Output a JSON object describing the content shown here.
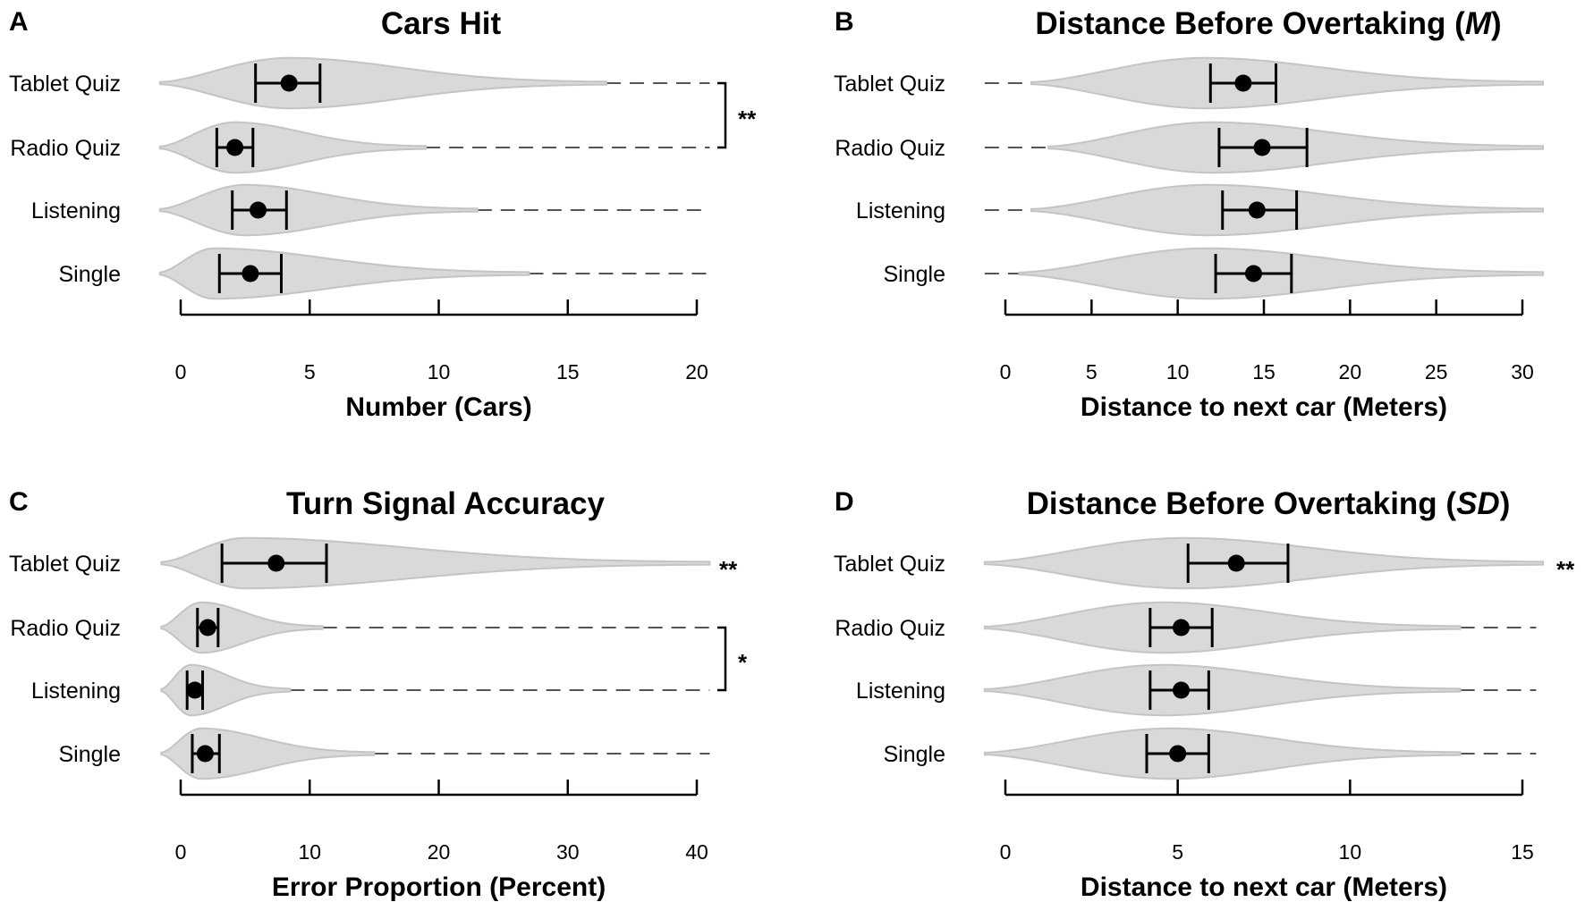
{
  "chart_data": [
    {
      "type": "violin",
      "panel_label": "A",
      "title": "Cars Hit",
      "title_italic": "",
      "title_suffix": "",
      "xlabel": "Number (Cars)",
      "xlim": [
        0,
        20
      ],
      "xticks": [
        0,
        5,
        10,
        15,
        20
      ],
      "categories": [
        "Tablet Quiz",
        "Radio Quiz",
        "Listening",
        "Single"
      ],
      "mean": [
        4.2,
        2.1,
        3.0,
        2.7
      ],
      "ci_low": [
        2.9,
        1.4,
        2.0,
        1.5
      ],
      "ci_high": [
        5.4,
        2.8,
        4.1,
        3.9
      ],
      "violin_end": [
        16.5,
        9.5,
        11.5,
        13.5
      ],
      "violin_start": [
        -0.8,
        -0.8,
        -0.8,
        -0.8
      ],
      "violin_peak": [
        4.2,
        2.1,
        2.5,
        1.3
      ],
      "dash_end": [
        20.5,
        20.5,
        20.5,
        20.5
      ],
      "dash_start": [
        null,
        null,
        null,
        null
      ],
      "significance": [
        {
          "type": "bracket",
          "from": 0,
          "to": 1,
          "label": "**"
        }
      ]
    },
    {
      "type": "violin",
      "panel_label": "B",
      "title": "Distance Before Overtaking (",
      "title_italic": "M",
      "title_suffix": ")",
      "xlabel": "Distance to next car (Meters)",
      "xlim": [
        0,
        30
      ],
      "xticks": [
        0,
        5,
        10,
        15,
        20,
        25,
        30
      ],
      "categories": [
        "Tablet Quiz",
        "Radio Quiz",
        "Listening",
        "Single"
      ],
      "mean": [
        13.8,
        14.9,
        14.6,
        14.4
      ],
      "ci_low": [
        11.9,
        12.4,
        12.6,
        12.2
      ],
      "ci_high": [
        15.7,
        17.5,
        16.9,
        16.6
      ],
      "violin_start": [
        1.5,
        2.5,
        1.5,
        0.8
      ],
      "violin_end": [
        31.2,
        31.2,
        31.2,
        31.2
      ],
      "violin_peak": [
        11.6,
        12.0,
        11.8,
        11.8
      ],
      "dash_start": [
        -1.2,
        -1.2,
        -1.2,
        -1.2
      ],
      "dash_end": [
        null,
        null,
        null,
        null
      ],
      "significance": []
    },
    {
      "type": "violin",
      "panel_label": "C",
      "title": "Turn Signal Accuracy",
      "title_italic": "",
      "title_suffix": "",
      "xlabel": "Error Proportion (Percent)",
      "xlim": [
        0,
        40
      ],
      "xticks": [
        0,
        10,
        20,
        30,
        40
      ],
      "categories": [
        "Tablet Quiz",
        "Radio Quiz",
        "Listening",
        "Single"
      ],
      "mean": [
        7.4,
        2.1,
        1.1,
        1.9
      ],
      "ci_low": [
        3.2,
        1.3,
        0.5,
        0.9
      ],
      "ci_high": [
        11.3,
        2.9,
        1.7,
        3.0
      ],
      "violin_start": [
        -1.5,
        -1.5,
        -1.5,
        -1.5
      ],
      "violin_end": [
        41.0,
        11.0,
        8.5,
        15.0
      ],
      "violin_peak": [
        5.0,
        1.6,
        0.8,
        1.6
      ],
      "dash_start": [
        null,
        null,
        null,
        null
      ],
      "dash_end": [
        null,
        41.0,
        41.0,
        41.0
      ],
      "significance": [
        {
          "type": "star",
          "row": 0,
          "label": "**"
        },
        {
          "type": "bracket",
          "from": 1,
          "to": 2,
          "label": "*"
        }
      ]
    },
    {
      "type": "violin",
      "panel_label": "D",
      "title": "Distance Before Overtaking (",
      "title_italic": "SD",
      "title_suffix": ")",
      "xlabel": "Distance to next car (Meters)",
      "xlim": [
        0,
        15
      ],
      "xticks": [
        0,
        5,
        10,
        15
      ],
      "categories": [
        "Tablet Quiz",
        "Radio Quiz",
        "Listening",
        "Single"
      ],
      "mean": [
        6.7,
        5.1,
        5.1,
        5.0
      ],
      "ci_low": [
        5.3,
        4.2,
        4.2,
        4.1
      ],
      "ci_high": [
        8.2,
        6.0,
        5.9,
        5.9
      ],
      "violin_start": [
        -0.6,
        -0.6,
        -0.6,
        -0.6
      ],
      "violin_end": [
        15.6,
        13.2,
        13.2,
        13.2
      ],
      "violin_peak": [
        5.2,
        4.6,
        4.6,
        4.8
      ],
      "dash_start": [
        null,
        null,
        null,
        null
      ],
      "dash_end": [
        null,
        15.4,
        15.4,
        15.4
      ],
      "significance": [
        {
          "type": "star",
          "row": 0,
          "label": "**"
        }
      ]
    }
  ],
  "style": {
    "violin_fill": "#d9d9d9",
    "violin_stroke": "#c4c4c4",
    "marker_color": "#000000",
    "dash_color": "#555555",
    "axis_color": "#000000"
  }
}
